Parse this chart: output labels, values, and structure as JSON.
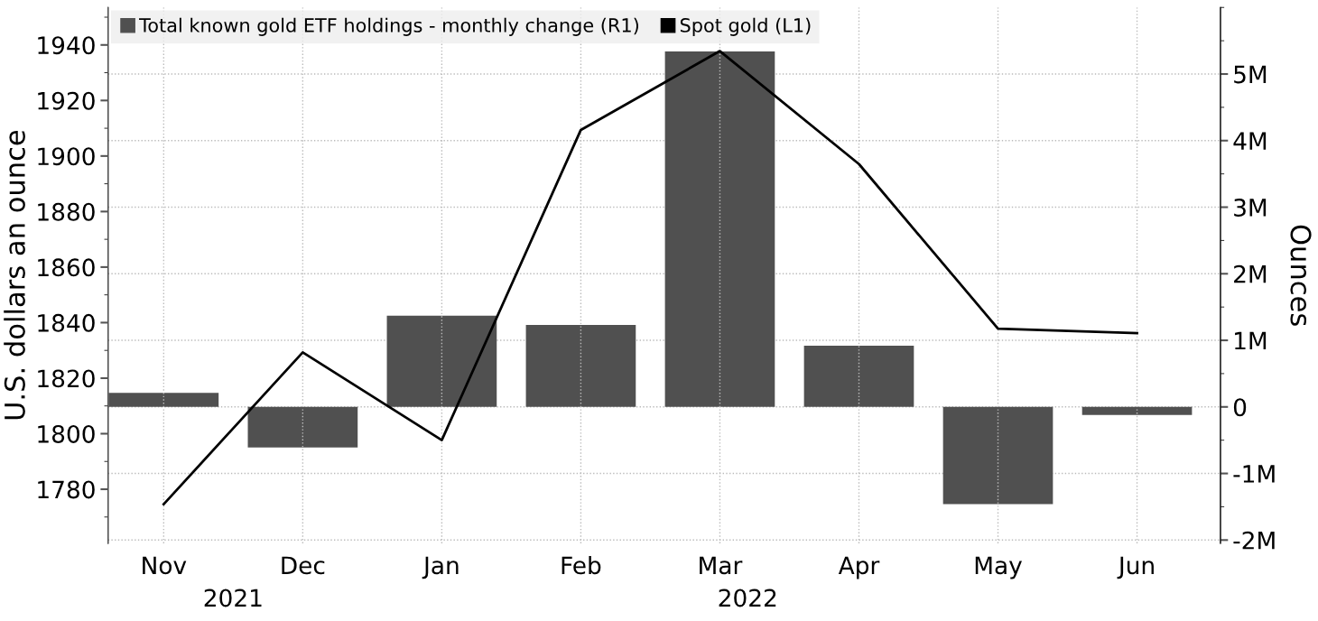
{
  "chart_data": {
    "type": "bar",
    "categories": [
      "Nov",
      "Dec",
      "Jan",
      "Feb",
      "Mar",
      "Apr",
      "May",
      "Jun"
    ],
    "series": [
      {
        "name": "Total known gold ETF holdings - monthly change (R1)",
        "axis": "y2",
        "color": "#505050",
        "values": [
          210000,
          -610000,
          1370000,
          1230000,
          5340000,
          920000,
          -1460000,
          -120000
        ]
      },
      {
        "name": "Spot gold (L1)",
        "type": "line",
        "axis": "y",
        "color": "#000000",
        "values": [
          1774.6,
          1829.3,
          1797.7,
          1909.4,
          1937.8,
          1897.1,
          1837.8,
          1836.2
        ]
      }
    ],
    "ylabel": "U.S. dollars an ounce",
    "y2label": "Ounces",
    "ylim": [
      1760.5,
      1953.5
    ],
    "yticks": [
      1780,
      1800,
      1820,
      1840,
      1860,
      1880,
      1900,
      1920,
      1940
    ],
    "y2lim": [
      -2050000,
      6000000
    ],
    "y2ticks": [
      {
        "value": -2000000,
        "label": "-2M"
      },
      {
        "value": -1000000,
        "label": "-1M"
      },
      {
        "value": 0,
        "label": "0"
      },
      {
        "value": 1000000,
        "label": "1M"
      },
      {
        "value": 2000000,
        "label": "2M"
      },
      {
        "value": 3000000,
        "label": "3M"
      },
      {
        "value": 4000000,
        "label": "4M"
      },
      {
        "value": 5000000,
        "label": "5M"
      }
    ],
    "annotations": [
      "2021",
      "2022"
    ],
    "grid": true,
    "legend": "top left",
    "marker": "none",
    "line_style": "solid"
  }
}
